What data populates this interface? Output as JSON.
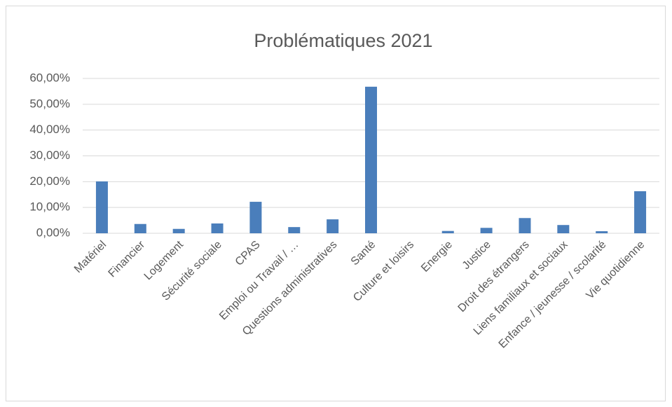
{
  "chart_data": {
    "type": "bar",
    "title": "Problématiques 2021",
    "categories": [
      "Matériel",
      "Financier",
      "Logement",
      "Sécurité sociale",
      "CPAS",
      "Emploi ou Travail / …",
      "Questions administratives",
      "Santé",
      "Culture et loisirs",
      "Energie",
      "Justice",
      "Droit des étrangers",
      "Liens familiaux et sociaux",
      "Enfance / jeunesse / scolarité",
      "Vie quotidienne"
    ],
    "values": [
      20.1,
      3.6,
      1.7,
      3.8,
      12.2,
      2.4,
      5.4,
      56.8,
      0,
      0.9,
      2.1,
      5.9,
      3.2,
      0.8,
      16.3
    ],
    "color": "#4a7ebb",
    "ylim": [
      0,
      60
    ],
    "yticks": [
      {
        "value": 0,
        "label": "0,00%"
      },
      {
        "value": 10,
        "label": "10,00%"
      },
      {
        "value": 20,
        "label": "20,00%"
      },
      {
        "value": 30,
        "label": "30,00%"
      },
      {
        "value": 40,
        "label": "40,00%"
      },
      {
        "value": 50,
        "label": "50,00%"
      },
      {
        "value": 60,
        "label": "60,00%"
      }
    ],
    "grid": true
  }
}
